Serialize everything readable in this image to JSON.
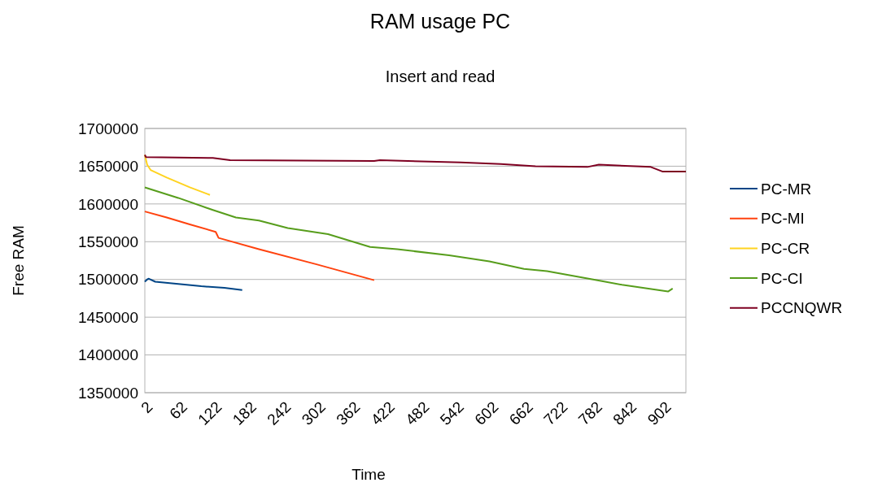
{
  "chart_data": {
    "type": "line",
    "title": "RAM usage PC",
    "subtitle": "Insert and read",
    "xlabel": "Time",
    "ylabel": "Free RAM",
    "xlim": [
      2,
      941
    ],
    "xticks": [
      2,
      62,
      122,
      182,
      242,
      302,
      362,
      422,
      482,
      542,
      602,
      662,
      722,
      782,
      842,
      902
    ],
    "ylim": [
      1350000,
      1700000
    ],
    "yticks": [
      1350000,
      1400000,
      1450000,
      1500000,
      1550000,
      1600000,
      1650000,
      1700000
    ],
    "grid": "y",
    "legend": "right",
    "marker": "none",
    "line_style": "solid",
    "series": [
      {
        "name": "PC-MR",
        "color": "#004586",
        "x": [
          2,
          6,
          9,
          20,
          60,
          100,
          140,
          171
        ],
        "values": [
          1497000,
          1500000,
          1501000,
          1497000,
          1494000,
          1491000,
          1489000,
          1486000
        ]
      },
      {
        "name": "PC-MI",
        "color": "#ff420e",
        "x": [
          2,
          40,
          80,
          125,
          130,
          200,
          300,
          400
        ],
        "values": [
          1590000,
          1582000,
          1573000,
          1563000,
          1555000,
          1540000,
          1520000,
          1499000
        ]
      },
      {
        "name": "PC-CR",
        "color": "#ffd320",
        "x": [
          2,
          6,
          12,
          40,
          80,
          115
        ],
        "values": [
          1665000,
          1652000,
          1645000,
          1635000,
          1622000,
          1612000
        ]
      },
      {
        "name": "PC-CI",
        "color": "#579d1c",
        "x": [
          2,
          60,
          120,
          160,
          200,
          250,
          320,
          393,
          440,
          530,
          600,
          660,
          700,
          780,
          830,
          910,
          918
        ],
        "values": [
          1622000,
          1608000,
          1592000,
          1582000,
          1578000,
          1568000,
          1560000,
          1543000,
          1540000,
          1532000,
          1524000,
          1514000,
          1511000,
          1500000,
          1493000,
          1484000,
          1488000
        ]
      },
      {
        "name": "PCCNQWR",
        "color": "#7e0021",
        "x": [
          2,
          4,
          120,
          150,
          400,
          410,
          550,
          620,
          680,
          770,
          790,
          880,
          900,
          941
        ],
        "values": [
          1665000,
          1662000,
          1661000,
          1658000,
          1657000,
          1658000,
          1655000,
          1653000,
          1650000,
          1649000,
          1652000,
          1649000,
          1643000,
          1643000
        ]
      }
    ]
  }
}
